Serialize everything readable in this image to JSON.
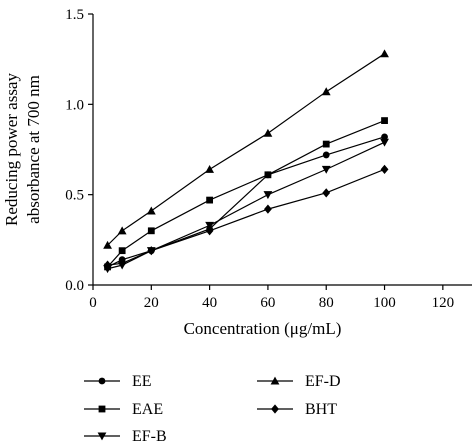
{
  "chart_data": {
    "type": "line",
    "xlabel": "Concentration (μg/mL)",
    "ylabel_lines": [
      "Reducing power assay",
      "absorbance at 700 nm"
    ],
    "xlim": [
      0,
      130
    ],
    "ylim": [
      0,
      1.5
    ],
    "x_ticks": [
      0,
      20,
      40,
      60,
      80,
      100,
      120
    ],
    "y_ticks": [
      0.0,
      0.5,
      1.0,
      1.5
    ],
    "x_tick_labels": [
      "0",
      "20",
      "40",
      "60",
      "80",
      "100",
      "120"
    ],
    "y_tick_labels": [
      "0.0",
      "0.5",
      "1.0",
      "1.5"
    ],
    "grid": false,
    "legend_placement": "below",
    "series": [
      {
        "name": "EE",
        "marker": "circle",
        "color": "#000000",
        "x": [
          5,
          10,
          20,
          40,
          60,
          80,
          100
        ],
        "y": [
          0.1,
          0.14,
          0.19,
          0.31,
          0.61,
          0.72,
          0.82
        ]
      },
      {
        "name": "EAE",
        "marker": "square",
        "color": "#000000",
        "x": [
          5,
          10,
          20,
          40,
          60,
          80,
          100
        ],
        "y": [
          0.1,
          0.19,
          0.3,
          0.47,
          0.61,
          0.78,
          0.91
        ]
      },
      {
        "name": "EF-B",
        "marker": "triangle-down",
        "color": "#000000",
        "x": [
          5,
          10,
          20,
          40,
          60,
          80,
          100
        ],
        "y": [
          0.09,
          0.11,
          0.19,
          0.33,
          0.5,
          0.64,
          0.79
        ]
      },
      {
        "name": "EF-D",
        "marker": "triangle-up",
        "color": "#000000",
        "x": [
          5,
          10,
          20,
          40,
          60,
          80,
          100
        ],
        "y": [
          0.22,
          0.3,
          0.41,
          0.64,
          0.84,
          1.07,
          1.28
        ]
      },
      {
        "name": "BHT",
        "marker": "diamond",
        "color": "#000000",
        "x": [
          5,
          10,
          20,
          40,
          60,
          80,
          100
        ],
        "y": [
          0.11,
          0.12,
          0.19,
          0.3,
          0.42,
          0.51,
          0.64
        ]
      }
    ]
  }
}
